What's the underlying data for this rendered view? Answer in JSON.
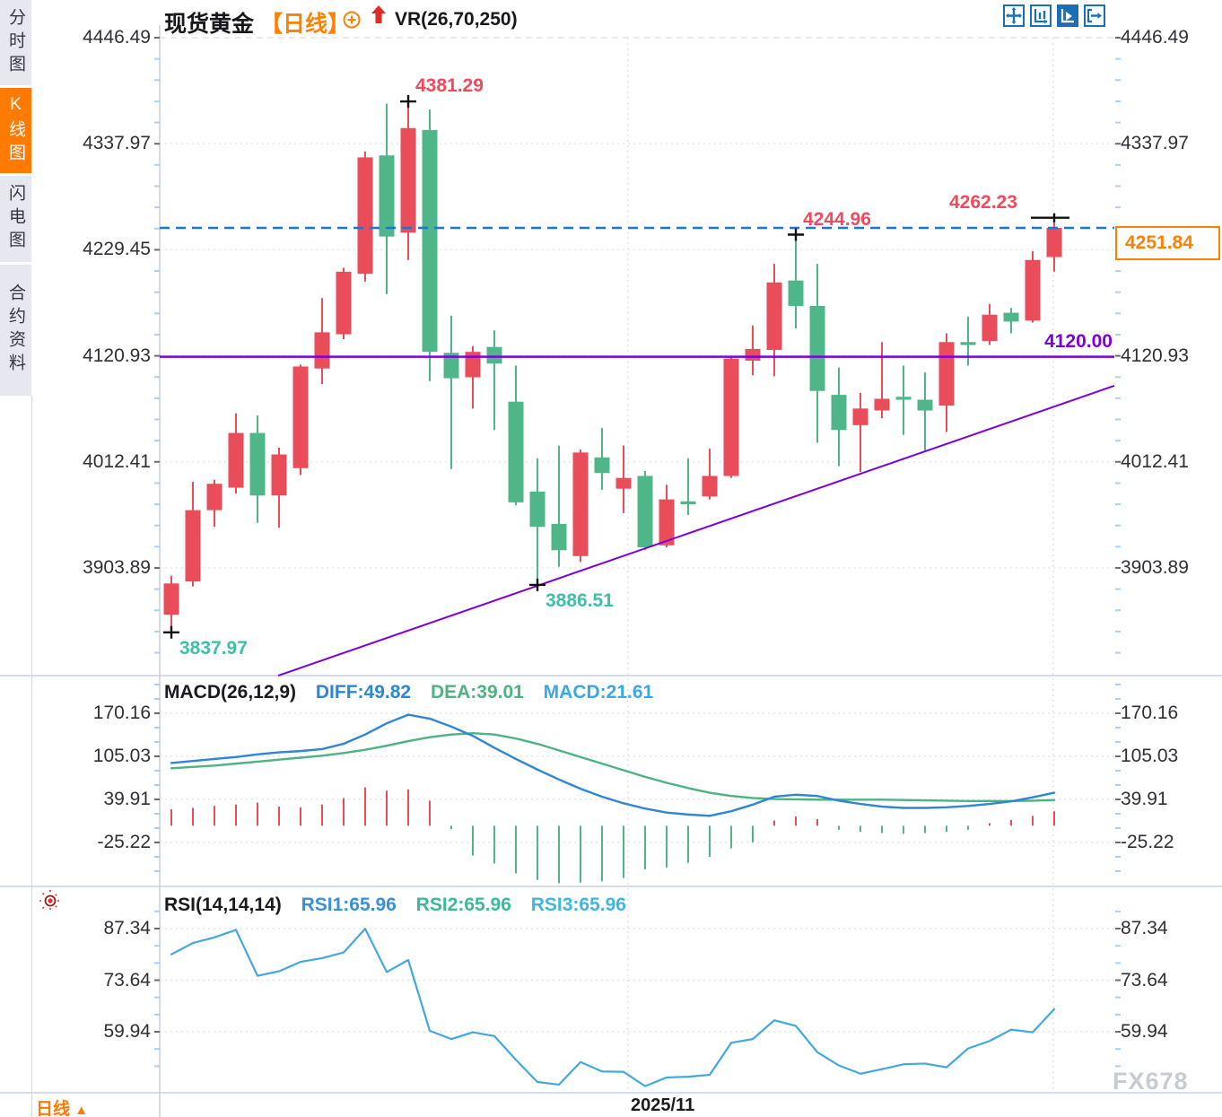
{
  "header": {
    "title": "现货黄金",
    "period": "【日线】",
    "indicator": "VR(26,70,250)"
  },
  "sidebar": {
    "tabs": [
      {
        "label": "分时图",
        "active": false
      },
      {
        "label": "K线图",
        "active": true
      },
      {
        "label": "闪电图",
        "active": false
      },
      {
        "label": "合约资料",
        "active": false
      }
    ]
  },
  "toolbar": {
    "icons": [
      "pan-crosshair",
      "axis-range",
      "axis-play-active",
      "exit-right"
    ]
  },
  "bottom_bar": {
    "period_label": "日线",
    "period_arrow": "▲",
    "date_label": "2025/11"
  },
  "watermark": "FX678",
  "price_box": {
    "value": "4251.84"
  },
  "colors": {
    "up": "#e94d5a",
    "down": "#4eb688",
    "purple": "#7d00dc",
    "dashed_blue": "#1677d9",
    "orange": "#ff8000",
    "label_red": "#f2495c",
    "label_teal": "#3fbfa8",
    "diff_line": "#2e86d5",
    "dea_line": "#4cb381",
    "rsi_line": "#44a8e0",
    "macd_value_color": "#38a8e8",
    "grid": "#e6e6e6",
    "separator": "#c9d2e0",
    "tick": "#aed0ef"
  },
  "chart_data": {
    "type": "candlestick-with-indicators",
    "symbol": "现货黄金",
    "interval": "日线",
    "main": {
      "y_ticks": [
        "4446.49",
        "4337.97",
        "4229.45",
        "4120.93",
        "4012.41",
        "3903.89"
      ],
      "candles": [
        [
          3856,
          3888,
          3837.97,
          3896
        ],
        [
          3890,
          3963,
          3885,
          3992
        ],
        [
          3963,
          3990,
          3946,
          3994
        ],
        [
          3986,
          4042,
          3980,
          4062
        ],
        [
          4042,
          3978,
          3950,
          4060
        ],
        [
          3978,
          4020,
          3945,
          4027
        ],
        [
          4006,
          4110,
          3999,
          4112
        ],
        [
          4108,
          4145,
          4092,
          4180
        ],
        [
          4143,
          4207,
          4138,
          4211
        ],
        [
          4205,
          4324,
          4197,
          4330
        ],
        [
          4326,
          4243,
          4184,
          4379
        ],
        [
          4247,
          4354,
          4219,
          4381.29
        ],
        [
          4352,
          4125,
          4095,
          4373
        ],
        [
          4124,
          4098,
          4005,
          4162
        ],
        [
          4099,
          4125,
          4067,
          4131
        ],
        [
          4130,
          4113,
          4045,
          4147
        ],
        [
          4074,
          3971,
          3968,
          4111
        ],
        [
          3982,
          3946,
          3886.51,
          4016
        ],
        [
          3949,
          3922,
          3905,
          4029
        ],
        [
          3916,
          4022,
          3910,
          4025
        ],
        [
          4017,
          4001,
          3984,
          4047
        ],
        [
          3985,
          3996,
          3960,
          4029
        ],
        [
          3998,
          3925,
          3922,
          4003
        ],
        [
          3927,
          3974,
          3925,
          3989
        ],
        [
          3972,
          3969,
          3958,
          4016
        ],
        [
          3977,
          3998,
          3974,
          4026
        ],
        [
          3998,
          4118,
          3996,
          4121
        ],
        [
          4116,
          4128,
          4101,
          4152
        ],
        [
          4127,
          4196,
          4100,
          4215
        ],
        [
          4198,
          4172,
          4149,
          4244.96
        ],
        [
          4172,
          4085,
          4032,
          4215
        ],
        [
          4081,
          4045,
          4008,
          4109
        ],
        [
          4050,
          4067,
          4002,
          4083
        ],
        [
          4065,
          4077,
          4057,
          4135
        ],
        [
          4079,
          4076,
          4040,
          4111
        ],
        [
          4076,
          4065,
          4024,
          4104
        ],
        [
          4070,
          4135,
          4043,
          4144
        ],
        [
          4135,
          4132,
          4111,
          4161
        ],
        [
          4136,
          4163,
          4132,
          4174
        ],
        [
          4165,
          4156,
          4144,
          4170
        ],
        [
          4157,
          4219,
          4155,
          4228
        ],
        [
          4222,
          4251.84,
          4207,
          4262.23
        ]
      ],
      "annotations": [
        {
          "kind": "high",
          "index": 11,
          "value": 4381.29,
          "label": "4381.29"
        },
        {
          "kind": "high",
          "index": 29,
          "value": 4244.96,
          "label": "4244.96"
        },
        {
          "kind": "latest_high",
          "index": 41,
          "value": 4262.23,
          "label": "4262.23"
        },
        {
          "kind": "low",
          "index": 0,
          "value": 3837.97,
          "label": "3837.97"
        },
        {
          "kind": "low",
          "index": 17,
          "value": 3886.51,
          "label": "3886.51"
        }
      ],
      "hline": {
        "value": 4120.0,
        "label": "4120.00"
      },
      "current_price_line": {
        "value": 4251.84
      },
      "trendline": {
        "index1": 4.96,
        "price1": 3793.7,
        "index2": 43.79,
        "price2": 4090.3
      },
      "x_gridlines": [
        {
          "index": 21.2,
          "label": "2025/11"
        },
        {
          "index": 40.95,
          "label": ""
        }
      ]
    },
    "macd": {
      "title": "MACD(26,12,9)",
      "diff_label": "DIFF:49.82",
      "dea_label": "DEA:39.01",
      "macd_label": "MACD:21.61",
      "y_ticks": [
        "170.16",
        "105.03",
        "39.91",
        "-25.22"
      ],
      "diff": [
        95,
        98,
        101,
        104,
        108,
        111,
        113,
        116,
        124,
        138,
        155,
        168,
        162,
        150,
        136,
        118,
        101,
        85,
        70,
        56,
        44,
        34,
        26,
        20,
        17,
        15,
        22,
        32,
        44,
        47,
        45,
        38,
        33,
        29,
        27,
        27,
        28,
        30,
        33,
        37,
        43,
        50
      ],
      "dea": [
        87,
        89,
        91,
        94,
        97,
        100,
        103,
        106,
        110,
        115,
        121,
        128,
        134,
        138,
        140,
        138,
        132,
        124,
        114,
        104,
        94,
        84,
        74,
        65,
        57,
        50,
        45,
        42,
        40.5,
        40,
        39.5,
        39.5,
        39.5,
        39.5,
        39,
        38.5,
        38,
        37.5,
        37.5,
        37.5,
        38,
        39
      ],
      "hist": [
        25,
        27,
        30,
        32,
        35,
        29,
        28,
        32,
        42,
        58,
        53,
        55,
        38,
        -5,
        -45,
        -57,
        -72,
        -82,
        -87,
        -86,
        -84,
        -79,
        -66,
        -63,
        -56,
        -47,
        -34,
        -25,
        8,
        14,
        10,
        -6,
        -9,
        -11,
        -12,
        -11,
        -9,
        -6,
        4,
        9,
        15,
        22
      ]
    },
    "rsi": {
      "title": "RSI(14,14,14)",
      "rsi1_label": "RSI1:65.96",
      "rsi2_label": "RSI2:65.96",
      "rsi3_label": "RSI3:65.96",
      "y_ticks": [
        "87.34",
        "73.64",
        "59.94"
      ],
      "values": [
        80.5,
        83.5,
        85,
        87,
        74.8,
        76,
        78.5,
        79.5,
        81,
        87.3,
        75.8,
        79,
        60.2,
        58,
        59.8,
        58.8,
        52.5,
        46.6,
        45.9,
        51.9,
        49.4,
        49.3,
        45.5,
        47.8,
        48,
        48.5,
        57,
        58,
        63,
        61.5,
        54.5,
        51,
        48.8,
        50,
        51.3,
        51.5,
        50.5,
        55.5,
        57.5,
        60.5,
        59.8,
        65.96
      ]
    }
  }
}
